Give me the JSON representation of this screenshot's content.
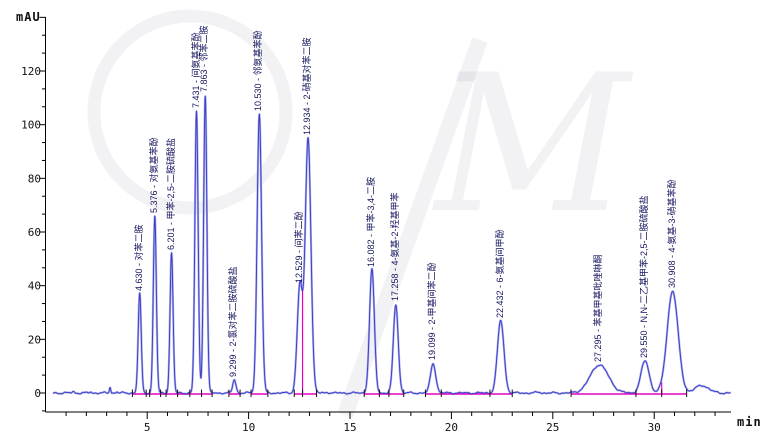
{
  "axis": {
    "y_unit": "mAU",
    "x_unit": "min"
  },
  "watermark": {
    "letter": "M"
  },
  "chart_data": {
    "type": "line",
    "title": "",
    "xlabel": "min",
    "ylabel": "mAU",
    "x_axis": {
      "unit": "min",
      "ticks": [
        5,
        10,
        15,
        20,
        25,
        30
      ],
      "minor_tick_interval": 1,
      "range": [
        0,
        33.8
      ]
    },
    "y_axis": {
      "unit": "mAU",
      "ticks": [
        0,
        20,
        40,
        60,
        80,
        100,
        120
      ],
      "range": [
        0,
        140
      ]
    },
    "grid": false,
    "legend": false,
    "series_color": "#3f3fca",
    "series_halo_color": "#b0b5ea",
    "integration_baseline_color": "#e600bd",
    "axis_color": "#000000",
    "peak_label_color": "#15155f",
    "peaks": [
      {
        "rt": 4.63,
        "label": "4.630 - 对苯二胺",
        "height_mau": 37,
        "sigma": 0.075
      },
      {
        "rt": 5.376,
        "label": "5.376 - 对氨基苯酚",
        "height_mau": 66,
        "sigma": 0.075
      },
      {
        "rt": 6.201,
        "label": "6.201 - 甲苯-2,5-二胺硫酸盐",
        "height_mau": 52,
        "sigma": 0.075
      },
      {
        "rt": 7.431,
        "label": "7.431 - 间氨基苯酚",
        "height_mau": 105,
        "sigma": 0.08
      },
      {
        "rt": 7.863,
        "label": "7.863 - 邻苯二胺",
        "height_mau": 111,
        "sigma": 0.08
      },
      {
        "rt": 9.299,
        "label": "9.299 - 2-氯对苯二胺硫酸盐",
        "height_mau": 5,
        "sigma": 0.08
      },
      {
        "rt": 10.53,
        "label": "10.530 - 邻氨基苯酚",
        "height_mau": 104,
        "sigma": 0.11
      },
      {
        "rt": 12.529,
        "label": "12.529 - 间苯二酚",
        "height_mau": 40,
        "sigma": 0.13
      },
      {
        "rt": 12.934,
        "label": "12.934 - 2-硝基对苯二胺",
        "height_mau": 95,
        "sigma": 0.14
      },
      {
        "rt": 16.082,
        "label": "16.082 - 甲苯-3,4-二胺",
        "height_mau": 46,
        "sigma": 0.12
      },
      {
        "rt": 17.258,
        "label": "17.258 - 4-氨基-2-羟基甲苯",
        "height_mau": 33,
        "sigma": 0.12
      },
      {
        "rt": 19.099,
        "label": "19.099 - 2-甲基间苯二酚",
        "height_mau": 11,
        "sigma": 0.13
      },
      {
        "rt": 22.432,
        "label": "22.432 - 6-氨基间甲酚",
        "height_mau": 27,
        "sigma": 0.16
      },
      {
        "rt": 27.295,
        "label": "27.295 - 苯基甲基吡唑啉酮",
        "height_mau": 10.5,
        "sigma": 0.45
      },
      {
        "rt": 29.55,
        "label": "29.550 - N,N-二乙基甲苯-2,5-二胺硫酸盐",
        "height_mau": 12,
        "sigma": 0.2
      },
      {
        "rt": 30.908,
        "label": "30.908 - 4-氨基-3-硝基苯酚",
        "height_mau": 38,
        "sigma": 0.27
      }
    ],
    "unlabeled_minor_peaks": [
      {
        "rt": 1.35,
        "height_mau": 0.5,
        "sigma": 0.06
      },
      {
        "rt": 2.2,
        "height_mau": 0.4,
        "sigma": 0.05
      },
      {
        "rt": 3.17,
        "height_mau": 2.2,
        "sigma": 0.035
      },
      {
        "rt": 3.5,
        "height_mau": 0.5,
        "sigma": 0.04
      },
      {
        "rt": 13.9,
        "height_mau": 0.3,
        "sigma": 0.08
      },
      {
        "rt": 24.3,
        "height_mau": 0.3,
        "sigma": 0.1
      },
      {
        "rt": 32.35,
        "height_mau": 2.8,
        "sigma": 0.33
      }
    ],
    "integration_baselines_min": [
      [
        4.27,
        8.2
      ],
      [
        9.03,
        9.58
      ],
      [
        10.12,
        10.95
      ],
      [
        12.25,
        13.35
      ],
      [
        15.7,
        17.65
      ],
      [
        18.72,
        23.0
      ],
      [
        25.9,
        31.6
      ]
    ],
    "drop_lines": [
      {
        "rt": 12.66,
        "height_mau": 38
      },
      {
        "rt": 30.37,
        "height_mau": 4
      }
    ],
    "integration_marks_min": [
      4.27,
      4.95,
      5.12,
      5.66,
      5.93,
      6.5,
      7.1,
      7.68,
      8.2,
      9.03,
      9.58,
      10.12,
      10.95,
      12.25,
      12.66,
      13.35,
      15.7,
      16.45,
      16.92,
      17.65,
      18.72,
      19.5,
      21.9,
      23.0,
      25.9,
      29.1,
      30.37,
      31.6
    ]
  }
}
